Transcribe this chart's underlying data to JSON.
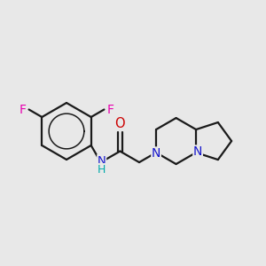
{
  "bg_color": "#e8e8e8",
  "bond_color": "#1a1a1a",
  "bond_width": 1.6,
  "F_color": "#e800b0",
  "N_color": "#1414cc",
  "O_color": "#cc0000",
  "NH_color": "#1414cc",
  "H_color": "#00aaaa",
  "figsize": [
    3.0,
    3.0
  ],
  "dpi": 100,
  "xlim": [
    0,
    300
  ],
  "ylim": [
    0,
    300
  ]
}
